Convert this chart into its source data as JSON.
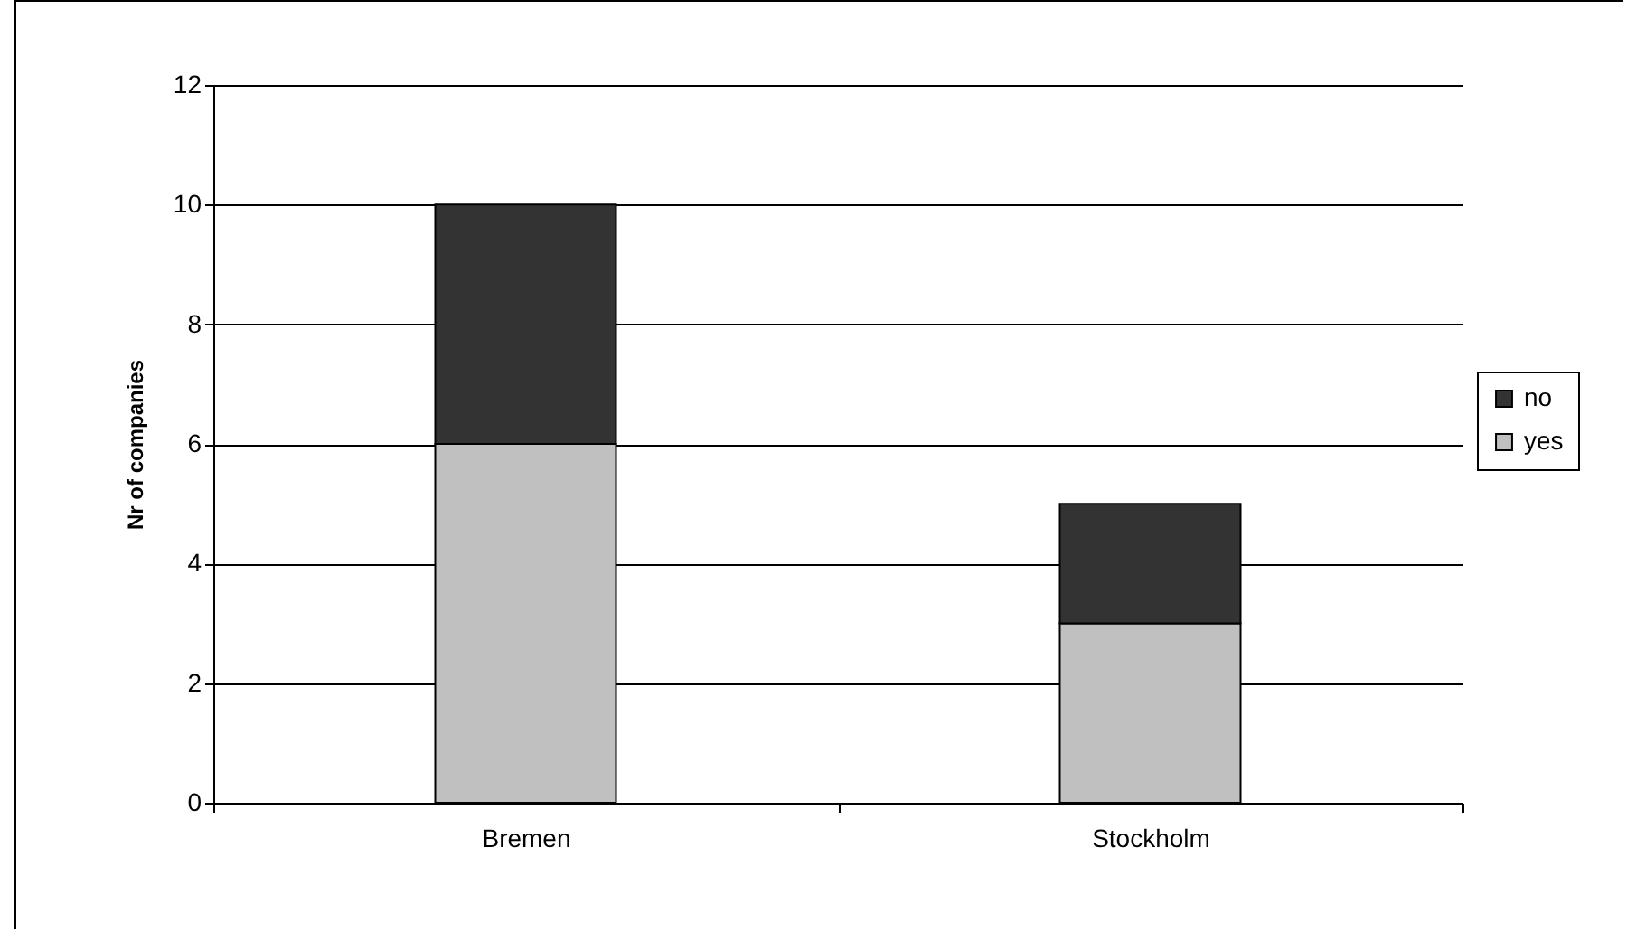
{
  "chart_data": {
    "type": "bar",
    "stacked": true,
    "ylabel": "Nr of companies",
    "categories": [
      "Bremen",
      "Stockholm"
    ],
    "series": [
      {
        "name": "yes",
        "color": "#c0c0c0",
        "values": [
          6,
          3
        ]
      },
      {
        "name": "no",
        "color": "#333333",
        "values": [
          4,
          2
        ]
      }
    ],
    "ylim": [
      0,
      12
    ],
    "yticks": [
      0,
      2,
      4,
      6,
      8,
      10,
      12
    ],
    "grid": "y",
    "legend": "right"
  }
}
